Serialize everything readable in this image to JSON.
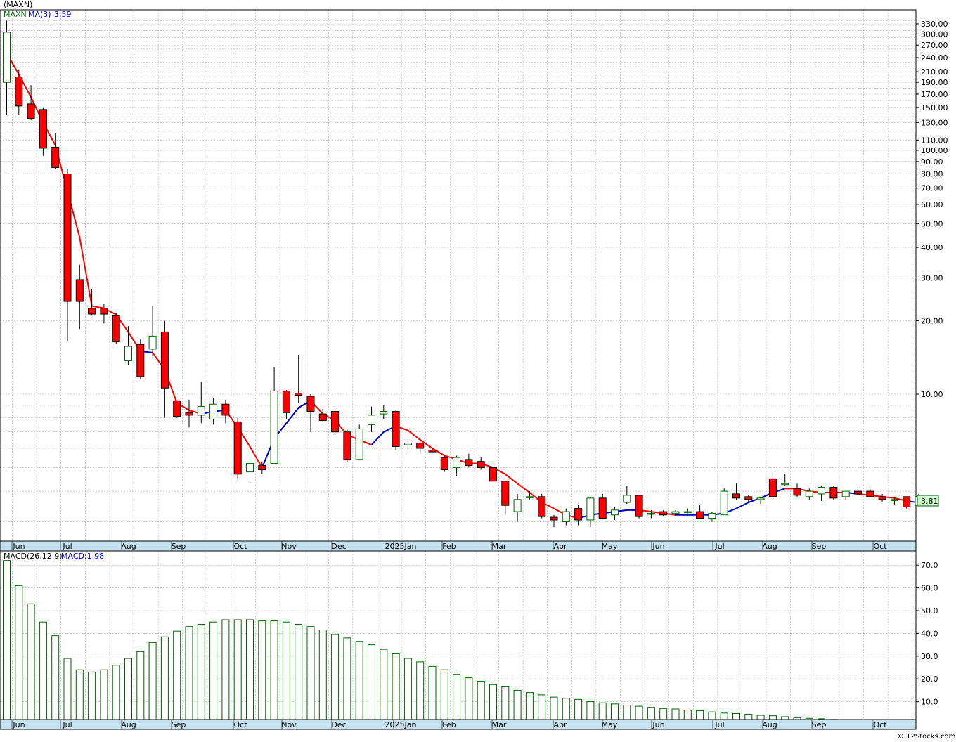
{
  "header": {
    "symbol": "(MAXN)",
    "legend_symbol": "MAXN",
    "legend_ma_label": "MA(3)",
    "legend_ma_value": "3.59",
    "last_price_label": "3.81"
  },
  "macd_header": {
    "label": "MACD(26,12,9)",
    "value_label": "MACD:1.98"
  },
  "footer": {
    "credit": "© 12Stocks.com"
  },
  "colors": {
    "up_candle_border": "#006400",
    "down_candle_fill": "#ff0000",
    "ma_down": "#ff0000",
    "ma_up": "#0000cc",
    "macd_bar": "#006400",
    "axis_band": "#c6e2f0",
    "price_box": "#ccffcc"
  },
  "chart_data": [
    {
      "type": "candlestick",
      "scale": "log",
      "yticks": [
        "330.00",
        "300.00",
        "270.00",
        "240.00",
        "210.00",
        "190.00",
        "170.00",
        "150.00",
        "130.00",
        "110.00",
        "100.00",
        "90.00",
        "80.00",
        "70.00",
        "60.00",
        "50.00",
        "40.00",
        "30.00",
        "20.00",
        "10.00"
      ],
      "ytick_values": [
        330,
        300,
        270,
        240,
        210,
        190,
        170,
        150,
        130,
        110,
        100,
        90,
        80,
        70,
        60,
        50,
        40,
        30,
        20,
        10
      ],
      "months": [
        "Jun",
        "Jul",
        "Aug",
        "Sep",
        "Oct",
        "Nov",
        "Dec",
        "2025Jan",
        "Feb",
        "Mar",
        "Apr",
        "May",
        "Jun",
        "Jul",
        "Aug",
        "Sep",
        "Oct"
      ],
      "candles": [
        {
          "o": 190,
          "h": 340,
          "l": 140,
          "c": 305
        },
        {
          "o": 200,
          "h": 215,
          "l": 140,
          "c": 152
        },
        {
          "o": 155,
          "h": 185,
          "l": 133,
          "c": 135
        },
        {
          "o": 147,
          "h": 150,
          "l": 95,
          "c": 102
        },
        {
          "o": 103,
          "h": 118,
          "l": 84,
          "c": 85
        },
        {
          "o": 80,
          "h": 84,
          "l": 16.5,
          "c": 24
        },
        {
          "o": 29.5,
          "h": 34,
          "l": 18.5,
          "c": 24
        },
        {
          "o": 22.5,
          "h": 27,
          "l": 21,
          "c": 21.3
        },
        {
          "o": 22.5,
          "h": 23.5,
          "l": 19.5,
          "c": 21.3
        },
        {
          "o": 21,
          "h": 21.5,
          "l": 16,
          "c": 16.4
        },
        {
          "o": 13.7,
          "h": 19,
          "l": 13.2,
          "c": 15.7
        },
        {
          "o": 16,
          "h": 16.8,
          "l": 11.5,
          "c": 11.8
        },
        {
          "o": 15.3,
          "h": 23,
          "l": 14.4,
          "c": 17.3
        },
        {
          "o": 18,
          "h": 20,
          "l": 8,
          "c": 10.6
        },
        {
          "o": 9.4,
          "h": 9.4,
          "l": 8,
          "c": 8.1
        },
        {
          "o": 8.4,
          "h": 9.5,
          "l": 7.3,
          "c": 8.2
        },
        {
          "o": 8.2,
          "h": 11.2,
          "l": 7.6,
          "c": 8.9
        },
        {
          "o": 7.9,
          "h": 9.6,
          "l": 7.5,
          "c": 9.1
        },
        {
          "o": 9.1,
          "h": 9.5,
          "l": 7.6,
          "c": 8.2
        },
        {
          "o": 7.7,
          "h": 8,
          "l": 4.5,
          "c": 4.7
        },
        {
          "o": 4.8,
          "h": 5.2,
          "l": 4.4,
          "c": 5.2
        },
        {
          "o": 5.1,
          "h": 5.3,
          "l": 4.7,
          "c": 4.9
        },
        {
          "o": 5.2,
          "h": 12.9,
          "l": 5.2,
          "c": 10.3
        },
        {
          "o": 10.3,
          "h": 10.4,
          "l": 7.9,
          "c": 8.4
        },
        {
          "o": 10.1,
          "h": 14.5,
          "l": 9.2,
          "c": 9.9
        },
        {
          "o": 9.8,
          "h": 10,
          "l": 7,
          "c": 8.5
        },
        {
          "o": 8.3,
          "h": 8.7,
          "l": 7.7,
          "c": 7.8
        },
        {
          "o": 8.5,
          "h": 8.7,
          "l": 6.8,
          "c": 7
        },
        {
          "o": 7,
          "h": 7.2,
          "l": 5.3,
          "c": 5.4
        },
        {
          "o": 5.4,
          "h": 7.5,
          "l": 5.4,
          "c": 7.2
        },
        {
          "o": 7.5,
          "h": 8.9,
          "l": 7,
          "c": 8.2
        },
        {
          "o": 8.3,
          "h": 9,
          "l": 7.9,
          "c": 8.5
        },
        {
          "o": 8.5,
          "h": 8.6,
          "l": 5.9,
          "c": 6.1
        },
        {
          "o": 6.2,
          "h": 6.5,
          "l": 5.9,
          "c": 6.3
        },
        {
          "o": 6.3,
          "h": 6.6,
          "l": 5.7,
          "c": 6
        },
        {
          "o": 5.9,
          "h": 6,
          "l": 5.8,
          "c": 5.8
        },
        {
          "o": 5.5,
          "h": 5.6,
          "l": 4.8,
          "c": 4.9
        },
        {
          "o": 5,
          "h": 5.6,
          "l": 4.6,
          "c": 5.5
        },
        {
          "o": 5.4,
          "h": 5.7,
          "l": 5,
          "c": 5.1
        },
        {
          "o": 5.3,
          "h": 5.5,
          "l": 4.9,
          "c": 5
        },
        {
          "o": 5,
          "h": 5.3,
          "l": 4.3,
          "c": 4.4
        },
        {
          "o": 4.4,
          "h": 4.4,
          "l": 3.2,
          "c": 3.5
        },
        {
          "o": 3.3,
          "h": 3.9,
          "l": 3.0,
          "c": 3.7
        },
        {
          "o": 3.8,
          "h": 4.0,
          "l": 3.7,
          "c": 3.8
        },
        {
          "o": 3.8,
          "h": 3.9,
          "l": 3.1,
          "c": 3.15
        },
        {
          "o": 3.13,
          "h": 3.2,
          "l": 2.85,
          "c": 3.05
        },
        {
          "o": 3.0,
          "h": 3.4,
          "l": 2.9,
          "c": 3.3
        },
        {
          "o": 3.4,
          "h": 3.5,
          "l": 2.9,
          "c": 3.05
        },
        {
          "o": 3.05,
          "h": 3.8,
          "l": 2.85,
          "c": 3.75
        },
        {
          "o": 3.75,
          "h": 3.9,
          "l": 3.2,
          "c": 3.1
        },
        {
          "o": 3.2,
          "h": 3.45,
          "l": 3.05,
          "c": 3.35
        },
        {
          "o": 3.6,
          "h": 4.2,
          "l": 3.55,
          "c": 3.85
        },
        {
          "o": 3.85,
          "h": 3.85,
          "l": 3.1,
          "c": 3.15
        },
        {
          "o": 3.25,
          "h": 3.35,
          "l": 3.1,
          "c": 3.25
        },
        {
          "o": 3.3,
          "h": 3.35,
          "l": 3.15,
          "c": 3.2
        },
        {
          "o": 3.25,
          "h": 3.35,
          "l": 3.15,
          "c": 3.3
        },
        {
          "o": 3.3,
          "h": 3.4,
          "l": 3.25,
          "c": 3.3
        },
        {
          "o": 3.3,
          "h": 3.5,
          "l": 3.1,
          "c": 3.1
        },
        {
          "o": 3.1,
          "h": 3.3,
          "l": 3.0,
          "c": 3.25
        },
        {
          "o": 3.2,
          "h": 4.1,
          "l": 3.2,
          "c": 4.0
        },
        {
          "o": 3.9,
          "h": 4.3,
          "l": 3.7,
          "c": 3.75
        },
        {
          "o": 3.8,
          "h": 3.85,
          "l": 3.6,
          "c": 3.7
        },
        {
          "o": 3.7,
          "h": 3.8,
          "l": 3.55,
          "c": 3.75
        },
        {
          "o": 4.5,
          "h": 4.8,
          "l": 3.7,
          "c": 3.8
        },
        {
          "o": 4.3,
          "h": 4.7,
          "l": 4.2,
          "c": 4.3
        },
        {
          "o": 4.1,
          "h": 4.3,
          "l": 3.8,
          "c": 3.85
        },
        {
          "o": 3.8,
          "h": 4.1,
          "l": 3.7,
          "c": 4.0
        },
        {
          "o": 3.9,
          "h": 4.2,
          "l": 3.65,
          "c": 4.15
        },
        {
          "o": 4.15,
          "h": 4.2,
          "l": 3.7,
          "c": 3.75
        },
        {
          "o": 3.8,
          "h": 4.0,
          "l": 3.7,
          "c": 4.0
        },
        {
          "o": 4.0,
          "h": 4.1,
          "l": 3.9,
          "c": 3.9
        },
        {
          "o": 4.0,
          "h": 4.1,
          "l": 3.8,
          "c": 3.8
        },
        {
          "o": 3.8,
          "h": 3.9,
          "l": 3.6,
          "c": 3.7
        },
        {
          "o": 3.7,
          "h": 3.8,
          "l": 3.5,
          "c": 3.7
        },
        {
          "o": 3.8,
          "h": 3.8,
          "l": 3.4,
          "c": 3.45
        },
        {
          "o": 3.5,
          "h": 3.9,
          "l": 3.5,
          "c": 3.81
        }
      ],
      "ma3": [
        250,
        205,
        165,
        130,
        105,
        68,
        44,
        23,
        22.5,
        21.2,
        18,
        15,
        14.8,
        12.6,
        9.2,
        8.6,
        8.3,
        8.5,
        8.6,
        7.3,
        6.1,
        5.0,
        6.6,
        7.6,
        8.8,
        9.4,
        8.3,
        7.8,
        6.8,
        6.5,
        6.2,
        7.0,
        7.4,
        7.1,
        6.5,
        6.0,
        5.6,
        5.4,
        5.2,
        5.2,
        5.0,
        4.7,
        4.3,
        3.95,
        3.6,
        3.4,
        3.2,
        3.1,
        3.2,
        3.25,
        3.3,
        3.35,
        3.35,
        3.3,
        3.25,
        3.2,
        3.2,
        3.2,
        3.2,
        3.25,
        3.4,
        3.6,
        3.75,
        3.95,
        4.1,
        4.1,
        4.0,
        3.95,
        3.95,
        3.95,
        3.9,
        3.85,
        3.8,
        3.75,
        3.65,
        3.59
      ],
      "ma3_trend": [
        "d",
        "d",
        "d",
        "d",
        "d",
        "d",
        "d",
        "d",
        "d",
        "d",
        "d",
        "d",
        "u",
        "d",
        "d",
        "d",
        "d",
        "u",
        "u",
        "d",
        "d",
        "d",
        "u",
        "u",
        "u",
        "u",
        "d",
        "d",
        "d",
        "d",
        "d",
        "u",
        "u",
        "d",
        "d",
        "d",
        "d",
        "d",
        "d",
        "d",
        "d",
        "d",
        "d",
        "d",
        "d",
        "d",
        "d",
        "d",
        "u",
        "u",
        "u",
        "u",
        "u",
        "d",
        "d",
        "d",
        "u",
        "u",
        "u",
        "u",
        "u",
        "u",
        "u",
        "u",
        "u",
        "d",
        "d",
        "d",
        "d",
        "d",
        "u",
        "d",
        "d",
        "d",
        "d",
        "u"
      ]
    },
    {
      "type": "bar",
      "name": "MACD(26,12,9)",
      "yticks": [
        "70.0",
        "60.0",
        "50.0",
        "40.0",
        "30.0",
        "20.0",
        "10.0"
      ],
      "ytick_values": [
        70,
        60,
        50,
        40,
        30,
        20,
        10
      ],
      "values": [
        72,
        61,
        53,
        45,
        39,
        29,
        24,
        23,
        24,
        26,
        29,
        32,
        36,
        38.5,
        41,
        43,
        44,
        45,
        46,
        46,
        46,
        45.5,
        45.5,
        45,
        44,
        43,
        41.5,
        39.5,
        38,
        36.5,
        35,
        33,
        31,
        29,
        27.5,
        25.5,
        24,
        22,
        20.5,
        19,
        17.5,
        16.5,
        15,
        14,
        13,
        12,
        11.5,
        11,
        10,
        9.5,
        9,
        8.5,
        8,
        7.5,
        7,
        6.8,
        6.3,
        6,
        5.5,
        5,
        4.8,
        4.5,
        4,
        3.8,
        3.4,
        3,
        2.7,
        2.5,
        2.2,
        2,
        1.9,
        1.8,
        1.6,
        1.5,
        1.4,
        1.98
      ]
    }
  ]
}
